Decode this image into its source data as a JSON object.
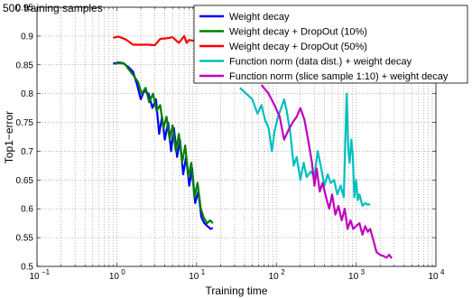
{
  "chart_data": {
    "type": "line",
    "title": "500 training samples",
    "xlabel": "Training time",
    "ylabel": "Top1−error",
    "xscale": "log",
    "xlim": [
      0.1,
      10000
    ],
    "ylim": [
      0.5,
      0.95
    ],
    "x_ticks": [
      {
        "base": "10",
        "exp": "−1"
      },
      {
        "base": "10",
        "exp": "0"
      },
      {
        "base": "10",
        "exp": "1"
      },
      {
        "base": "10",
        "exp": "2"
      },
      {
        "base": "10",
        "exp": "3"
      },
      {
        "base": "10",
        "exp": "4"
      }
    ],
    "y_ticks": [
      "0.5",
      "0.55",
      "0.6",
      "0.65",
      "0.7",
      "0.75",
      "0.8",
      "0.85",
      "0.9",
      "0.95"
    ],
    "y_tick_values": [
      0.5,
      0.55,
      0.6,
      0.65,
      0.7,
      0.75,
      0.8,
      0.85,
      0.9,
      0.95
    ],
    "grid": true,
    "legend_position": "top-right",
    "series": [
      {
        "name": "Weight decay",
        "color": "#0000ff",
        "points": [
          [
            0.9,
            0.852
          ],
          [
            1.05,
            0.854
          ],
          [
            1.2,
            0.853
          ],
          [
            1.4,
            0.846
          ],
          [
            1.6,
            0.838
          ],
          [
            1.8,
            0.815
          ],
          [
            2.0,
            0.79
          ],
          [
            2.2,
            0.805
          ],
          [
            2.5,
            0.8
          ],
          [
            2.8,
            0.775
          ],
          [
            3.1,
            0.79
          ],
          [
            3.4,
            0.73
          ],
          [
            3.7,
            0.76
          ],
          [
            4.0,
            0.72
          ],
          [
            4.4,
            0.75
          ],
          [
            4.8,
            0.7
          ],
          [
            5.2,
            0.74
          ],
          [
            5.7,
            0.69
          ],
          [
            6.2,
            0.72
          ],
          [
            6.8,
            0.66
          ],
          [
            7.4,
            0.69
          ],
          [
            8.1,
            0.64
          ],
          [
            8.8,
            0.67
          ],
          [
            9.6,
            0.61
          ],
          [
            10.5,
            0.63
          ],
          [
            11.5,
            0.585
          ],
          [
            12.5,
            0.575
          ],
          [
            13.7,
            0.57
          ],
          [
            15.0,
            0.565
          ],
          [
            16.0,
            0.567
          ]
        ]
      },
      {
        "name": "Weight decay + DropOut (10%)",
        "color": "#008000",
        "points": [
          [
            0.95,
            0.852
          ],
          [
            1.05,
            0.853
          ],
          [
            1.25,
            0.852
          ],
          [
            1.45,
            0.84
          ],
          [
            1.65,
            0.83
          ],
          [
            1.85,
            0.82
          ],
          [
            2.05,
            0.8
          ],
          [
            2.3,
            0.81
          ],
          [
            2.55,
            0.785
          ],
          [
            2.85,
            0.8
          ],
          [
            3.15,
            0.77
          ],
          [
            3.5,
            0.78
          ],
          [
            3.85,
            0.74
          ],
          [
            4.2,
            0.76
          ],
          [
            4.6,
            0.72
          ],
          [
            5.0,
            0.745
          ],
          [
            5.5,
            0.7
          ],
          [
            6.0,
            0.73
          ],
          [
            6.6,
            0.68
          ],
          [
            7.2,
            0.71
          ],
          [
            7.9,
            0.655
          ],
          [
            8.6,
            0.68
          ],
          [
            9.4,
            0.62
          ],
          [
            10.3,
            0.645
          ],
          [
            11.3,
            0.6
          ],
          [
            12.3,
            0.585
          ],
          [
            13.5,
            0.575
          ],
          [
            14.8,
            0.58
          ],
          [
            16.0,
            0.575
          ]
        ]
      },
      {
        "name": "Weight decay + DropOut (50%)",
        "color": "#ff0000",
        "points": [
          [
            0.9,
            0.897
          ],
          [
            1.05,
            0.899
          ],
          [
            1.3,
            0.894
          ],
          [
            1.6,
            0.885
          ],
          [
            2.0,
            0.885
          ],
          [
            2.5,
            0.885
          ],
          [
            3.0,
            0.884
          ],
          [
            3.5,
            0.895
          ],
          [
            4.2,
            0.896
          ],
          [
            5.0,
            0.898
          ],
          [
            6.0,
            0.888
          ],
          [
            7.0,
            0.9
          ],
          [
            7.5,
            0.888
          ],
          [
            8.0,
            0.893
          ],
          [
            9.0,
            0.892
          ],
          [
            10.0,
            0.893
          ]
        ]
      },
      {
        "name": "Function norm (data dist.) + weight decay",
        "color": "#00bfbf",
        "points": [
          [
            35,
            0.81
          ],
          [
            42,
            0.8
          ],
          [
            50,
            0.79
          ],
          [
            58,
            0.765
          ],
          [
            65,
            0.78
          ],
          [
            72,
            0.755
          ],
          [
            80,
            0.74
          ],
          [
            88,
            0.7
          ],
          [
            95,
            0.735
          ],
          [
            105,
            0.76
          ],
          [
            115,
            0.775
          ],
          [
            125,
            0.79
          ],
          [
            135,
            0.77
          ],
          [
            150,
            0.73
          ],
          [
            165,
            0.675
          ],
          [
            180,
            0.69
          ],
          [
            200,
            0.65
          ],
          [
            220,
            0.68
          ],
          [
            240,
            0.655
          ],
          [
            270,
            0.665
          ],
          [
            300,
            0.655
          ],
          [
            330,
            0.7
          ],
          [
            360,
            0.675
          ],
          [
            400,
            0.64
          ],
          [
            440,
            0.66
          ],
          [
            480,
            0.645
          ],
          [
            530,
            0.65
          ],
          [
            580,
            0.625
          ],
          [
            640,
            0.64
          ],
          [
            700,
            0.62
          ],
          [
            760,
            0.8
          ],
          [
            800,
            0.7
          ],
          [
            830,
            0.68
          ],
          [
            870,
            0.72
          ],
          [
            910,
            0.69
          ],
          [
            950,
            0.62
          ],
          [
            1000,
            0.65
          ],
          [
            1050,
            0.615
          ],
          [
            1100,
            0.625
          ],
          [
            1200,
            0.605
          ],
          [
            1300,
            0.61
          ],
          [
            1400,
            0.607
          ],
          [
            1500,
            0.608
          ]
        ]
      },
      {
        "name": "Function norm (slice sample 1:10) + weight decay",
        "color": "#bf00bf",
        "points": [
          [
            65,
            0.815
          ],
          [
            80,
            0.8
          ],
          [
            95,
            0.78
          ],
          [
            110,
            0.76
          ],
          [
            125,
            0.72
          ],
          [
            140,
            0.735
          ],
          [
            160,
            0.75
          ],
          [
            180,
            0.76
          ],
          [
            200,
            0.775
          ],
          [
            225,
            0.755
          ],
          [
            250,
            0.72
          ],
          [
            280,
            0.68
          ],
          [
            300,
            0.64
          ],
          [
            320,
            0.67
          ],
          [
            350,
            0.63
          ],
          [
            380,
            0.645
          ],
          [
            420,
            0.62
          ],
          [
            460,
            0.6
          ],
          [
            500,
            0.625
          ],
          [
            550,
            0.59
          ],
          [
            600,
            0.605
          ],
          [
            660,
            0.58
          ],
          [
            720,
            0.6
          ],
          [
            780,
            0.565
          ],
          [
            850,
            0.58
          ],
          [
            920,
            0.565
          ],
          [
            1000,
            0.57
          ],
          [
            1100,
            0.575
          ],
          [
            1200,
            0.555
          ],
          [
            1300,
            0.57
          ],
          [
            1400,
            0.56
          ],
          [
            1500,
            0.565
          ],
          [
            1650,
            0.545
          ],
          [
            1800,
            0.525
          ],
          [
            2000,
            0.52
          ],
          [
            2200,
            0.518
          ],
          [
            2400,
            0.515
          ],
          [
            2600,
            0.52
          ],
          [
            2800,
            0.514
          ]
        ]
      }
    ]
  }
}
